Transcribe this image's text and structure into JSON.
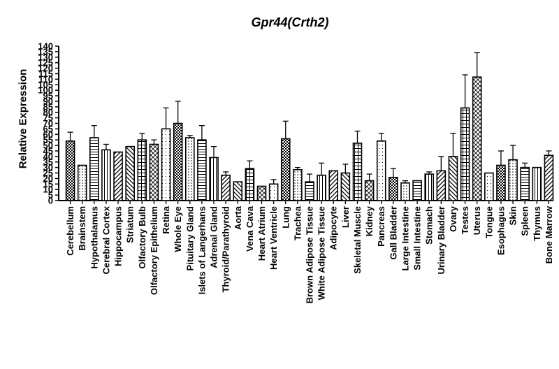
{
  "chart_data": {
    "type": "bar",
    "title": "Gpr44(Crth2)",
    "ylabel": "Relative Expression",
    "xlabel": "",
    "ylim": [
      0,
      140
    ],
    "yticks": [
      0,
      5,
      10,
      15,
      20,
      25,
      30,
      35,
      40,
      45,
      50,
      55,
      60,
      65,
      70,
      75,
      80,
      85,
      90,
      95,
      100,
      105,
      110,
      115,
      120,
      125,
      130,
      135,
      140
    ],
    "grid": false,
    "legend": "none",
    "categories": [
      "Cerebellum",
      "Brainstem",
      "Hypothalamus",
      "Cerebral Cortex",
      "Hippocampus",
      "Striatum",
      "Olfactory Bulb",
      "Olfactory Epithelium",
      "Retina",
      "Whole Eye",
      "Pituitary Gland",
      "Islets of Langerhans",
      "Adrenal Gland",
      "Thyroid/Parathyroid",
      "Aorta",
      "Vena Cava",
      "Heart Atrium",
      "Heart Ventricle",
      "Lung",
      "Trachea",
      "Brown Adipose Tissue",
      "White Adipose Tissue",
      "Adipocyte",
      "Liver",
      "Skeletal Muscle",
      "Kidney",
      "Pancreas",
      "Gall Bladder",
      "Large Intestine",
      "Small Intestine",
      "Stomach",
      "Urinary Bladder",
      "Ovary",
      "Testes",
      "Uterus",
      "Tongue",
      "Esophagus",
      "Skin",
      "Spleen",
      "Thymus",
      "Bone Marrow"
    ],
    "values": [
      54,
      32,
      57,
      46,
      44,
      49,
      55,
      51,
      65,
      70,
      57,
      55,
      39,
      23,
      17,
      29,
      13,
      15,
      56,
      28,
      17,
      23,
      27,
      25,
      52,
      18,
      54,
      21,
      16,
      18,
      24,
      27,
      40,
      84,
      112,
      25,
      32,
      37,
      30,
      30,
      41
    ],
    "errors": [
      8,
      0,
      11,
      5,
      0,
      0,
      6,
      4,
      19,
      20,
      2,
      13,
      10,
      3,
      0,
      7,
      0,
      4,
      16,
      2,
      7,
      11,
      0,
      8,
      11,
      6,
      7,
      8,
      2,
      0,
      2,
      13,
      21,
      30,
      22,
      0,
      13,
      13,
      4,
      0,
      4
    ],
    "colors": {
      "bar_stroke": "#000000",
      "axis": "#000000",
      "background": "#ffffff"
    }
  }
}
